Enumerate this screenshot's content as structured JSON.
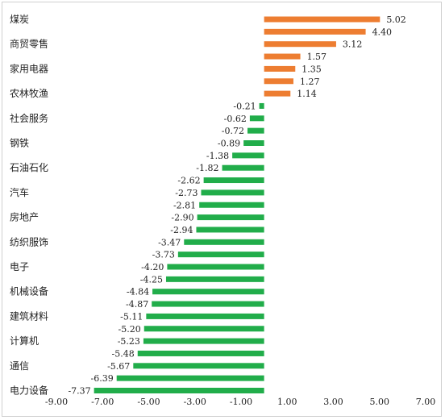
{
  "chart_data": {
    "type": "bar",
    "orientation": "horizontal",
    "categories": [
      "煤炭",
      "",
      "商贸零售",
      "",
      "家用电器",
      "",
      "农林牧渔",
      "",
      "社会服务",
      "",
      "钢铁",
      "",
      "石油石化",
      "",
      "汽车",
      "",
      "房地产",
      "",
      "纺织服饰",
      "",
      "电子",
      "",
      "机械设备",
      "",
      "建筑材料",
      "",
      "计算机",
      "",
      "通信",
      "",
      "电力设备"
    ],
    "values": [
      5.02,
      4.4,
      3.12,
      1.57,
      1.35,
      1.27,
      1.14,
      -0.21,
      -0.62,
      -0.72,
      -0.89,
      -1.38,
      -1.82,
      -2.62,
      -2.73,
      -2.81,
      -2.9,
      -2.94,
      -3.47,
      -3.73,
      -4.2,
      -4.25,
      -4.84,
      -4.87,
      -5.11,
      -5.2,
      -5.23,
      -5.48,
      -5.67,
      -6.39,
      -7.37
    ],
    "value_labels": [
      "5.02",
      "4.40",
      "3.12",
      "1.57",
      "1.35",
      "1.27",
      "1.14",
      "-0.21",
      "-0.62",
      "-0.72",
      "-0.89",
      "-1.38",
      "-1.82",
      "-2.62",
      "-2.73",
      "-2.81",
      "-2.90",
      "-2.94",
      "-3.47",
      "-3.73",
      "-4.20",
      "-4.25",
      "-4.84",
      "-4.87",
      "-5.11",
      "-5.20",
      "-5.23",
      "-5.48",
      "-5.67",
      "-6.39",
      "-7.37"
    ],
    "xlim": [
      -9.0,
      7.0
    ],
    "x_ticks": [
      "-9.00",
      "-7.00",
      "-5.00",
      "-3.00",
      "-1.00",
      "1.00",
      "3.00",
      "5.00",
      "7.00"
    ],
    "x_tick_values": [
      -9,
      -7,
      -5,
      -3,
      -1,
      1,
      3,
      5,
      7
    ],
    "colors": {
      "positive": "#ed7d31",
      "negative": "#21ad4a"
    },
    "grid": false,
    "legend": "none"
  }
}
